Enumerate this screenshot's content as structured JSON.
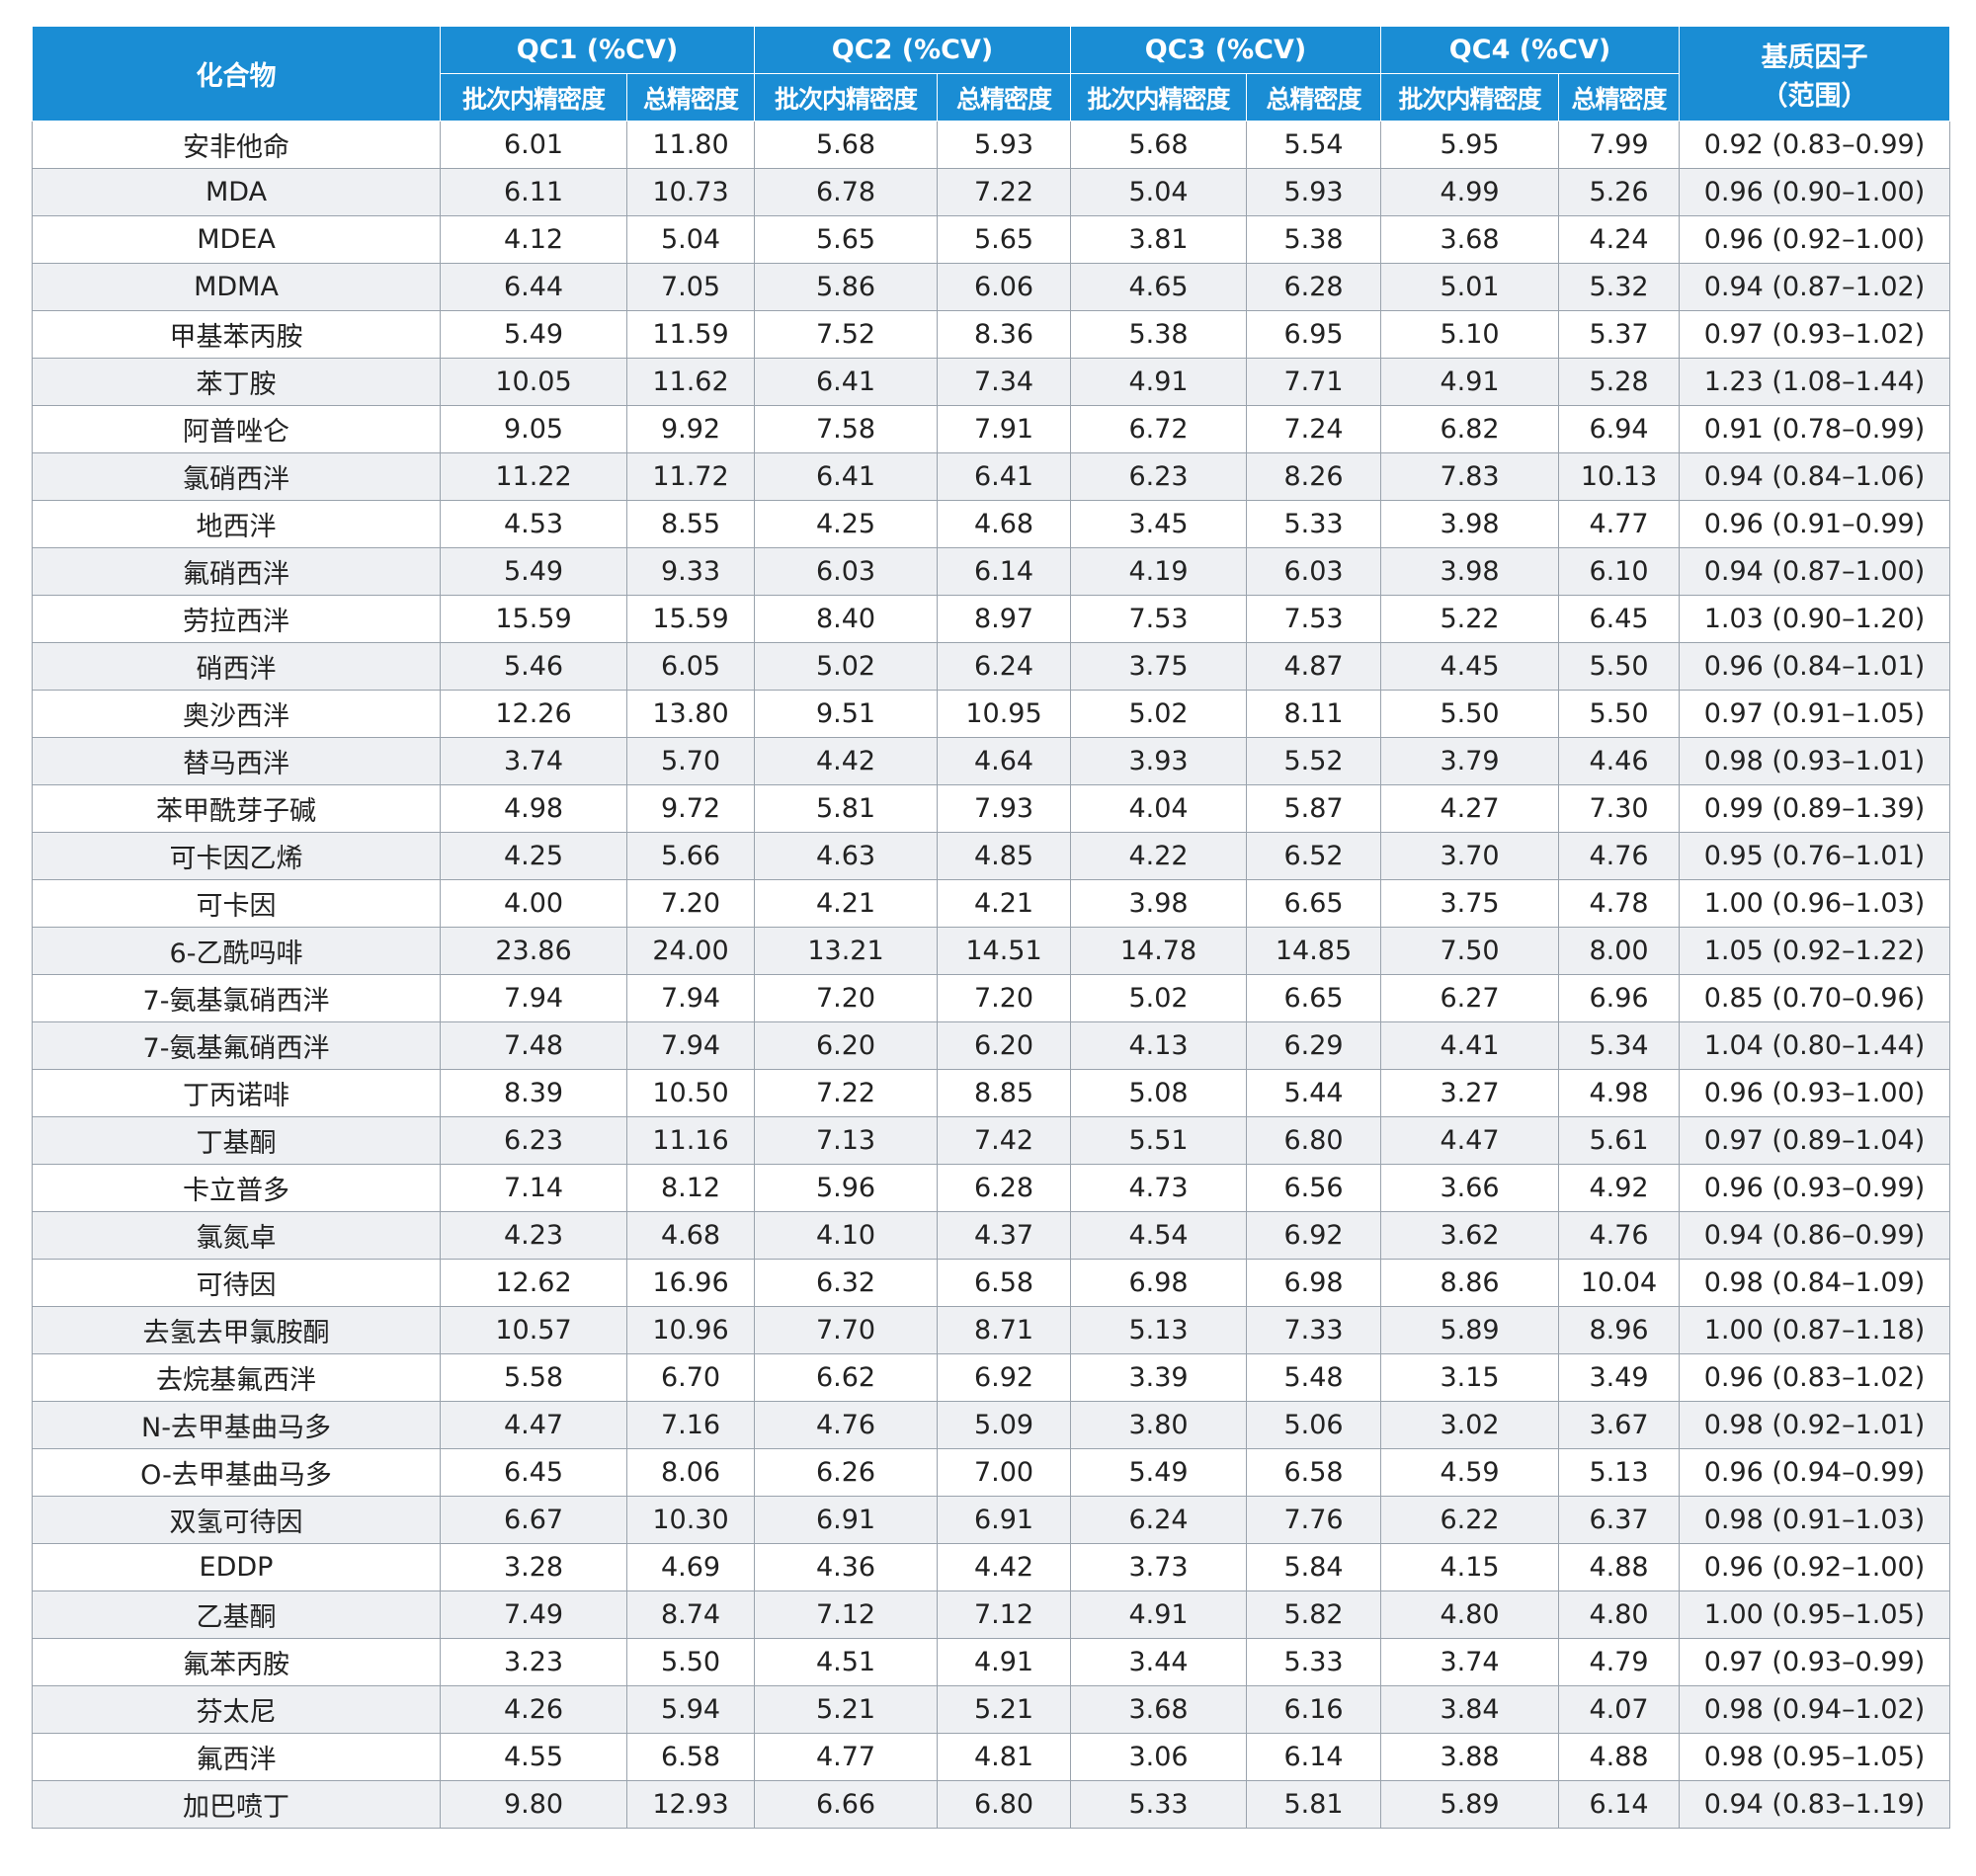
{
  "table": {
    "header": {
      "compound": "化合物",
      "groups": [
        "QC1 (%CV)",
        "QC2 (%CV)",
        "QC3 (%CV)",
        "QC4 (%CV)"
      ],
      "sub": [
        "批次内精密度",
        "总精密度",
        "批次内精密度",
        "总精密度",
        "批次内精密度",
        "总精密度",
        "批次内精密度",
        "总精密度"
      ],
      "factor": [
        "基质因子",
        "（范围）"
      ]
    },
    "rows": [
      [
        "安非他命",
        "6.01",
        "11.80",
        "5.68",
        "5.93",
        "5.68",
        "5.54",
        "5.95",
        "7.99",
        "0.92 (0.83–0.99)"
      ],
      [
        "MDA",
        "6.11",
        "10.73",
        "6.78",
        "7.22",
        "5.04",
        "5.93",
        "4.99",
        "5.26",
        "0.96 (0.90–1.00)"
      ],
      [
        "MDEA",
        "4.12",
        "5.04",
        "5.65",
        "5.65",
        "3.81",
        "5.38",
        "3.68",
        "4.24",
        "0.96 (0.92–1.00)"
      ],
      [
        "MDMA",
        "6.44",
        "7.05",
        "5.86",
        "6.06",
        "4.65",
        "6.28",
        "5.01",
        "5.32",
        "0.94 (0.87–1.02)"
      ],
      [
        "甲基苯丙胺",
        "5.49",
        "11.59",
        "7.52",
        "8.36",
        "5.38",
        "6.95",
        "5.10",
        "5.37",
        "0.97 (0.93–1.02)"
      ],
      [
        "苯丁胺",
        "10.05",
        "11.62",
        "6.41",
        "7.34",
        "4.91",
        "7.71",
        "4.91",
        "5.28",
        "1.23 (1.08–1.44)"
      ],
      [
        "阿普唑仑",
        "9.05",
        "9.92",
        "7.58",
        "7.91",
        "6.72",
        "7.24",
        "6.82",
        "6.94",
        "0.91 (0.78–0.99)"
      ],
      [
        "氯硝西泮",
        "11.22",
        "11.72",
        "6.41",
        "6.41",
        "6.23",
        "8.26",
        "7.83",
        "10.13",
        "0.94 (0.84–1.06)"
      ],
      [
        "地西泮",
        "4.53",
        "8.55",
        "4.25",
        "4.68",
        "3.45",
        "5.33",
        "3.98",
        "4.77",
        "0.96 (0.91–0.99)"
      ],
      [
        "氟硝西泮",
        "5.49",
        "9.33",
        "6.03",
        "6.14",
        "4.19",
        "6.03",
        "3.98",
        "6.10",
        "0.94 (0.87–1.00)"
      ],
      [
        "劳拉西泮",
        "15.59",
        "15.59",
        "8.40",
        "8.97",
        "7.53",
        "7.53",
        "5.22",
        "6.45",
        "1.03 (0.90–1.20)"
      ],
      [
        "硝西泮",
        "5.46",
        "6.05",
        "5.02",
        "6.24",
        "3.75",
        "4.87",
        "4.45",
        "5.50",
        "0.96 (0.84–1.01)"
      ],
      [
        "奥沙西泮",
        "12.26",
        "13.80",
        "9.51",
        "10.95",
        "5.02",
        "8.11",
        "5.50",
        "5.50",
        "0.97 (0.91–1.05)"
      ],
      [
        "替马西泮",
        "3.74",
        "5.70",
        "4.42",
        "4.64",
        "3.93",
        "5.52",
        "3.79",
        "4.46",
        "0.98 (0.93–1.01)"
      ],
      [
        "苯甲酰芽子碱",
        "4.98",
        "9.72",
        "5.81",
        "7.93",
        "4.04",
        "5.87",
        "4.27",
        "7.30",
        "0.99 (0.89–1.39)"
      ],
      [
        "可卡因乙烯",
        "4.25",
        "5.66",
        "4.63",
        "4.85",
        "4.22",
        "6.52",
        "3.70",
        "4.76",
        "0.95 (0.76–1.01)"
      ],
      [
        "可卡因",
        "4.00",
        "7.20",
        "4.21",
        "4.21",
        "3.98",
        "6.65",
        "3.75",
        "4.78",
        "1.00 (0.96–1.03)"
      ],
      [
        "6-乙酰吗啡",
        "23.86",
        "24.00",
        "13.21",
        "14.51",
        "14.78",
        "14.85",
        "7.50",
        "8.00",
        "1.05 (0.92–1.22)"
      ],
      [
        "7-氨基氯硝西泮",
        "7.94",
        "7.94",
        "7.20",
        "7.20",
        "5.02",
        "6.65",
        "6.27",
        "6.96",
        "0.85 (0.70–0.96)"
      ],
      [
        "7-氨基氟硝西泮",
        "7.48",
        "7.94",
        "6.20",
        "6.20",
        "4.13",
        "6.29",
        "4.41",
        "5.34",
        "1.04 (0.80–1.44)"
      ],
      [
        "丁丙诺啡",
        "8.39",
        "10.50",
        "7.22",
        "8.85",
        "5.08",
        "5.44",
        "3.27",
        "4.98",
        "0.96 (0.93–1.00)"
      ],
      [
        "丁基酮",
        "6.23",
        "11.16",
        "7.13",
        "7.42",
        "5.51",
        "6.80",
        "4.47",
        "5.61",
        "0.97 (0.89–1.04)"
      ],
      [
        "卡立普多",
        "7.14",
        "8.12",
        "5.96",
        "6.28",
        "4.73",
        "6.56",
        "3.66",
        "4.92",
        "0.96 (0.93–0.99)"
      ],
      [
        "氯氮卓",
        "4.23",
        "4.68",
        "4.10",
        "4.37",
        "4.54",
        "6.92",
        "3.62",
        "4.76",
        "0.94 (0.86–0.99)"
      ],
      [
        "可待因",
        "12.62",
        "16.96",
        "6.32",
        "6.58",
        "6.98",
        "6.98",
        "8.86",
        "10.04",
        "0.98 (0.84–1.09)"
      ],
      [
        "去氢去甲氯胺酮",
        "10.57",
        "10.96",
        "7.70",
        "8.71",
        "5.13",
        "7.33",
        "5.89",
        "8.96",
        "1.00 (0.87–1.18)"
      ],
      [
        "去烷基氟西泮",
        "5.58",
        "6.70",
        "6.62",
        "6.92",
        "3.39",
        "5.48",
        "3.15",
        "3.49",
        "0.96 (0.83–1.02)"
      ],
      [
        "N-去甲基曲马多",
        "4.47",
        "7.16",
        "4.76",
        "5.09",
        "3.80",
        "5.06",
        "3.02",
        "3.67",
        "0.98 (0.92–1.01)"
      ],
      [
        "O-去甲基曲马多",
        "6.45",
        "8.06",
        "6.26",
        "7.00",
        "5.49",
        "6.58",
        "4.59",
        "5.13",
        "0.96 (0.94–0.99)"
      ],
      [
        "双氢可待因",
        "6.67",
        "10.30",
        "6.91",
        "6.91",
        "6.24",
        "7.76",
        "6.22",
        "6.37",
        "0.98 (0.91–1.03)"
      ],
      [
        "EDDP",
        "3.28",
        "4.69",
        "4.36",
        "4.42",
        "3.73",
        "5.84",
        "4.15",
        "4.88",
        "0.96 (0.92–1.00)"
      ],
      [
        "乙基酮",
        "7.49",
        "8.74",
        "7.12",
        "7.12",
        "4.91",
        "5.82",
        "4.80",
        "4.80",
        "1.00 (0.95–1.05)"
      ],
      [
        "氟苯丙胺",
        "3.23",
        "5.50",
        "4.51",
        "4.91",
        "3.44",
        "5.33",
        "3.74",
        "4.79",
        "0.97 (0.93–0.99)"
      ],
      [
        "芬太尼",
        "4.26",
        "5.94",
        "5.21",
        "5.21",
        "3.68",
        "6.16",
        "3.84",
        "4.07",
        "0.98 (0.94–1.02)"
      ],
      [
        "氟西泮",
        "4.55",
        "6.58",
        "4.77",
        "4.81",
        "3.06",
        "6.14",
        "3.88",
        "4.88",
        "0.98 (0.95–1.05)"
      ],
      [
        "加巴喷丁",
        "9.80",
        "12.93",
        "6.66",
        "6.80",
        "5.33",
        "5.81",
        "5.89",
        "6.14",
        "0.94 (0.83–1.19)"
      ]
    ]
  }
}
